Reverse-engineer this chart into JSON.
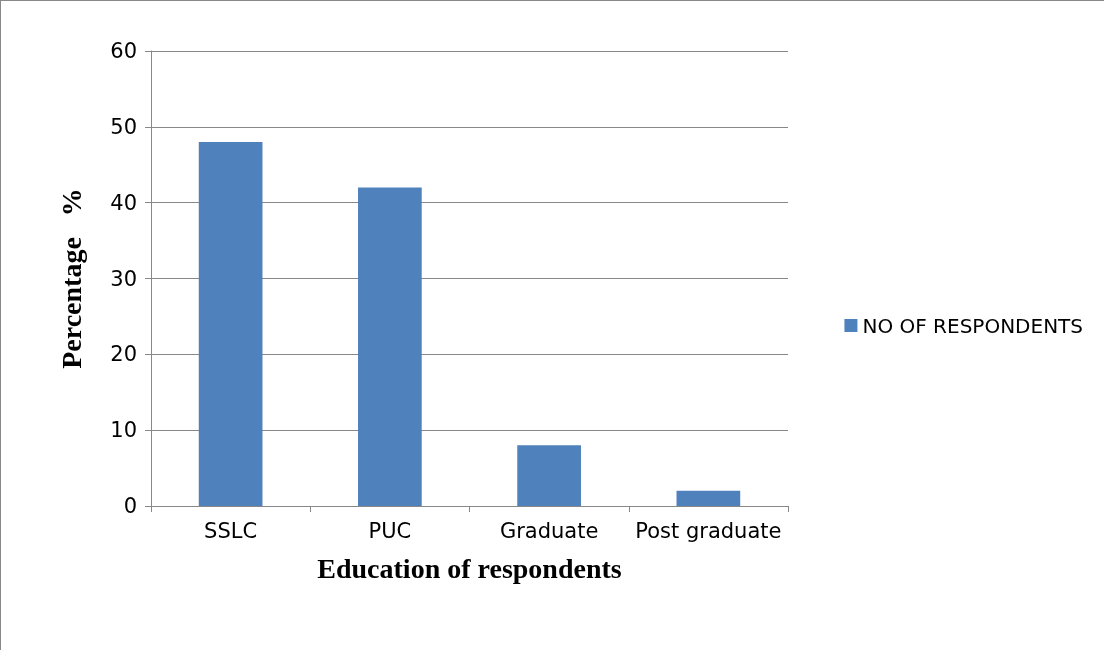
{
  "chart_data": {
    "type": "bar",
    "xlabel": "Education of respondents",
    "ylabel": "Percentage   %",
    "categories": [
      "SSLC",
      "PUC",
      "Graduate",
      "Post graduate"
    ],
    "series": [
      {
        "name": "NO OF RESPONDENTS",
        "color": "#4f81bd",
        "values": [
          48,
          42,
          8,
          2
        ]
      }
    ],
    "ylim": [
      0,
      60
    ],
    "yticks": [
      0,
      10,
      20,
      30,
      40,
      50,
      60
    ],
    "grid": "y",
    "legend": "right"
  }
}
